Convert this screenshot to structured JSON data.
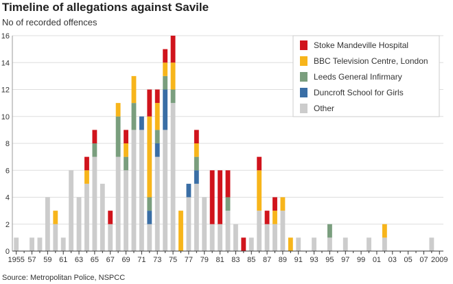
{
  "title": "Timeline of allegations against Savile",
  "subtitle": "No of recorded offences",
  "source": "Source: Metropolitan Police, NSPCC",
  "chart_data": {
    "type": "bar",
    "stacked": true,
    "ylabel": "No of recorded offences",
    "ylim": [
      0,
      16
    ],
    "y_ticks": [
      0,
      2,
      4,
      6,
      8,
      10,
      12,
      14,
      16
    ],
    "grid": true,
    "legend_position": "top-right",
    "x": [
      1955,
      1956,
      1957,
      1958,
      1959,
      1960,
      1961,
      1962,
      1963,
      1964,
      1965,
      1966,
      1967,
      1968,
      1969,
      1970,
      1971,
      1972,
      1973,
      1974,
      1975,
      1976,
      1977,
      1978,
      1979,
      1980,
      1981,
      1982,
      1983,
      1984,
      1985,
      1986,
      1987,
      1988,
      1989,
      1990,
      1991,
      1992,
      1993,
      1994,
      1995,
      1996,
      1997,
      1998,
      1999,
      2000,
      2001,
      2002,
      2003,
      2004,
      2005,
      2006,
      2007,
      2008,
      2009
    ],
    "x_tick_labels": [
      "1955",
      "57",
      "59",
      "61",
      "63",
      "65",
      "67",
      "69",
      "71",
      "73",
      "75",
      "77",
      "79",
      "81",
      "83",
      "85",
      "87",
      "89",
      "91",
      "93",
      "95",
      "97",
      "99",
      "01",
      "03",
      "05",
      "07",
      "2009"
    ],
    "series": [
      {
        "name": "Other",
        "color": "#cccccc",
        "values": [
          1,
          0,
          1,
          1,
          4,
          2,
          1,
          6,
          4,
          5,
          7,
          5,
          2,
          7,
          6,
          9,
          9,
          2,
          7,
          9,
          11,
          0,
          4,
          5,
          4,
          2,
          2,
          3,
          2,
          0,
          1,
          3,
          2,
          2,
          3,
          0,
          1,
          0,
          1,
          0,
          1,
          0,
          1,
          0,
          0,
          1,
          0,
          1,
          0,
          0,
          0,
          0,
          0,
          1,
          0
        ]
      },
      {
        "name": "Duncroft School for Girls",
        "color": "#3a6ea5",
        "values": [
          0,
          0,
          0,
          0,
          0,
          0,
          0,
          0,
          0,
          0,
          0,
          0,
          0,
          0,
          0,
          0,
          1,
          1,
          1,
          3,
          0,
          0,
          1,
          1,
          0,
          0,
          0,
          0,
          0,
          0,
          0,
          0,
          0,
          0,
          0,
          0,
          0,
          0,
          0,
          0,
          0,
          0,
          0,
          0,
          0,
          0,
          0,
          0,
          0,
          0,
          0,
          0,
          0,
          0,
          0
        ]
      },
      {
        "name": "Leeds General Infirmary",
        "color": "#7a9e7e",
        "values": [
          0,
          0,
          0,
          0,
          0,
          0,
          0,
          0,
          0,
          0,
          1,
          0,
          0,
          3,
          1,
          2,
          0,
          1,
          1,
          1,
          1,
          0,
          0,
          1,
          0,
          0,
          0,
          1,
          0,
          0,
          0,
          0,
          0,
          0,
          0,
          0,
          0,
          0,
          0,
          0,
          1,
          0,
          0,
          0,
          0,
          0,
          0,
          0,
          0,
          0,
          0,
          0,
          0,
          0,
          0
        ]
      },
      {
        "name": "BBC Television Centre, London",
        "color": "#f7b51b",
        "values": [
          0,
          0,
          0,
          0,
          0,
          1,
          0,
          0,
          0,
          1,
          0,
          0,
          0,
          1,
          1,
          2,
          0,
          6,
          2,
          1,
          2,
          3,
          0,
          1,
          0,
          0,
          0,
          0,
          0,
          0,
          0,
          3,
          0,
          1,
          1,
          1,
          0,
          0,
          0,
          0,
          0,
          0,
          0,
          0,
          0,
          0,
          0,
          1,
          0,
          0,
          0,
          0,
          0,
          0,
          0
        ]
      },
      {
        "name": "Stoke Mandeville Hospital",
        "color": "#d0141c",
        "values": [
          0,
          0,
          0,
          0,
          0,
          0,
          0,
          0,
          0,
          1,
          1,
          0,
          1,
          0,
          1,
          0,
          0,
          2,
          1,
          1,
          2,
          0,
          0,
          1,
          0,
          4,
          4,
          2,
          0,
          1,
          0,
          1,
          1,
          1,
          0,
          0,
          0,
          0,
          0,
          0,
          0,
          0,
          0,
          0,
          0,
          0,
          0,
          0,
          0,
          0,
          0,
          0,
          0,
          0,
          0
        ]
      }
    ],
    "legend": [
      {
        "name": "Stoke Mandeville Hospital",
        "color": "#d0141c"
      },
      {
        "name": "BBC Television Centre, London",
        "color": "#f7b51b"
      },
      {
        "name": "Leeds General Infirmary",
        "color": "#7a9e7e"
      },
      {
        "name": "Duncroft School for Girls",
        "color": "#3a6ea5"
      },
      {
        "name": "Other",
        "color": "#cccccc"
      }
    ]
  }
}
